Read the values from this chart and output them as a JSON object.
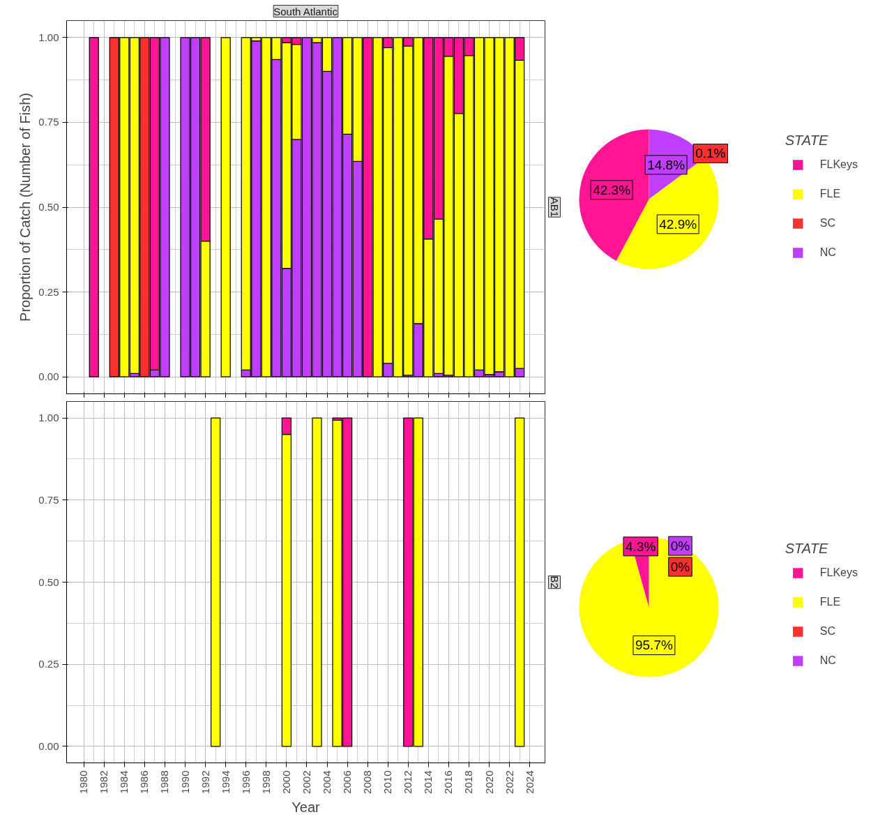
{
  "chart_data": [
    {
      "type": "bar",
      "stacked": true,
      "title": "South Atlantic",
      "subtitle": "AB1",
      "ylabel": "Proportion of Catch (Number of Fish)",
      "grid": true,
      "legend": false,
      "tick_labels": "y",
      "x": [
        1981,
        1983,
        1984,
        1985,
        1986,
        1987,
        1988,
        1990,
        1991,
        1992,
        1994,
        1996,
        1997,
        1998,
        1999,
        2000,
        2001,
        2002,
        2003,
        2004,
        2005,
        2006,
        2007,
        2008,
        2009,
        2010,
        2011,
        2012,
        2013,
        2014,
        2015,
        2016,
        2017,
        2018,
        2019,
        2020,
        2021,
        2022,
        2023
      ],
      "xlim": [
        1978.3,
        2025.5
      ],
      "xticks": [
        1980,
        1982,
        1984,
        1986,
        1988,
        1990,
        1992,
        1994,
        1996,
        1998,
        2000,
        2002,
        2004,
        2006,
        2008,
        2010,
        2012,
        2014,
        2016,
        2018,
        2020,
        2022,
        2024
      ],
      "ylim": [
        -0.05,
        1.05
      ],
      "yticks": [
        {
          "value": 0,
          "label": "0.00"
        },
        {
          "value": 0.25,
          "label": "0.25"
        },
        {
          "value": 0.5,
          "label": "0.50"
        },
        {
          "value": 0.75,
          "label": "0.75"
        },
        {
          "value": 1,
          "label": "1.00"
        }
      ],
      "series": [
        {
          "color": "#bf3eff",
          "values": [
            null,
            null,
            null,
            0.01,
            null,
            0.02,
            1.0,
            1.0,
            1.0,
            null,
            null,
            0.02,
            0.99,
            null,
            0.935,
            0.32,
            0.7,
            1.0,
            0.985,
            0.9,
            1.0,
            0.715,
            0.635,
            null,
            null,
            0.04,
            null,
            0.005,
            0.157,
            null,
            0.01,
            0.005,
            null,
            null,
            0.02,
            0.007,
            0.015,
            null,
            0.025
          ]
        },
        {
          "color": "#ff3030",
          "values": [
            null,
            1.0,
            null,
            null,
            1.0,
            null,
            null,
            null,
            null,
            null,
            null,
            null,
            null,
            null,
            null,
            null,
            null,
            null,
            null,
            null,
            null,
            null,
            null,
            null,
            null,
            null,
            null,
            null,
            null,
            null,
            null,
            null,
            null,
            null,
            null,
            null,
            null,
            null,
            null
          ]
        },
        {
          "color": "#ffff00",
          "values": [
            null,
            null,
            1.0,
            0.99,
            null,
            null,
            null,
            null,
            null,
            0.4,
            1.0,
            0.98,
            0.01,
            1.0,
            0.065,
            0.665,
            0.28,
            null,
            0.015,
            0.1,
            null,
            0.285,
            0.365,
            null,
            1.0,
            0.93,
            1.0,
            0.97,
            0.843,
            0.406,
            0.455,
            0.94,
            0.776,
            0.947,
            0.98,
            0.993,
            0.985,
            1.0,
            0.908
          ]
        },
        {
          "color": "#ff1493",
          "values": [
            1.0,
            null,
            null,
            null,
            null,
            0.98,
            null,
            null,
            null,
            0.6,
            null,
            null,
            null,
            null,
            null,
            0.015,
            0.02,
            null,
            null,
            null,
            null,
            null,
            null,
            1.0,
            null,
            0.03,
            null,
            0.025,
            null,
            0.594,
            0.535,
            0.055,
            0.224,
            0.053,
            null,
            null,
            null,
            null,
            0.067
          ]
        }
      ]
    },
    {
      "type": "bar",
      "stacked": true,
      "subtitle": "B2",
      "xlabel": "Year",
      "grid": true,
      "legend": false,
      "x": [
        1993,
        2000,
        2003,
        2005,
        2006,
        2012,
        2013,
        2023
      ],
      "xlim": [
        1978.3,
        2025.5
      ],
      "xticks": [
        1980,
        1982,
        1984,
        1986,
        1988,
        1990,
        1992,
        1994,
        1996,
        1998,
        2000,
        2002,
        2004,
        2006,
        2008,
        2010,
        2012,
        2014,
        2016,
        2018,
        2020,
        2022,
        2024
      ],
      "ylim": [
        -0.05,
        1.05
      ],
      "yticks": [
        {
          "value": 0,
          "label": "0.00"
        },
        {
          "value": 0.25,
          "label": "0.25"
        },
        {
          "value": 0.5,
          "label": "0.50"
        },
        {
          "value": 0.75,
          "label": "0.75"
        },
        {
          "value": 1,
          "label": "1.00"
        }
      ],
      "series": [
        {
          "color": "#ffff00",
          "values": [
            1.0,
            0.95,
            1.0,
            0.993,
            null,
            null,
            1.0,
            1.0
          ]
        },
        {
          "color": "#ff1493",
          "values": [
            null,
            0.05,
            null,
            0.007,
            1.0,
            1.0,
            null,
            null
          ]
        }
      ]
    },
    {
      "type": "pie",
      "legend": "right",
      "legend_title": "STATE",
      "categories": [
        "FLKeys",
        "FLE",
        "SC",
        "NC"
      ],
      "values": [
        42.3,
        42.9,
        0.1,
        14.8
      ],
      "colors": [
        "#ff1493",
        "#ffff00",
        "#ff3030",
        "#bf3eff"
      ],
      "value_labels": [
        "42.3%",
        "42.9%",
        "0.1%",
        "14.8%"
      ]
    },
    {
      "type": "pie",
      "legend": "right",
      "legend_title": "STATE",
      "categories": [
        "FLKeys",
        "FLE",
        "SC",
        "NC"
      ],
      "values": [
        4.3,
        95.7,
        0,
        0
      ],
      "colors": [
        "#ff1493",
        "#ffff00",
        "#ff3030",
        "#bf3eff"
      ],
      "value_labels": [
        "4.3%",
        "95.7%",
        "0%",
        "0%"
      ]
    }
  ]
}
